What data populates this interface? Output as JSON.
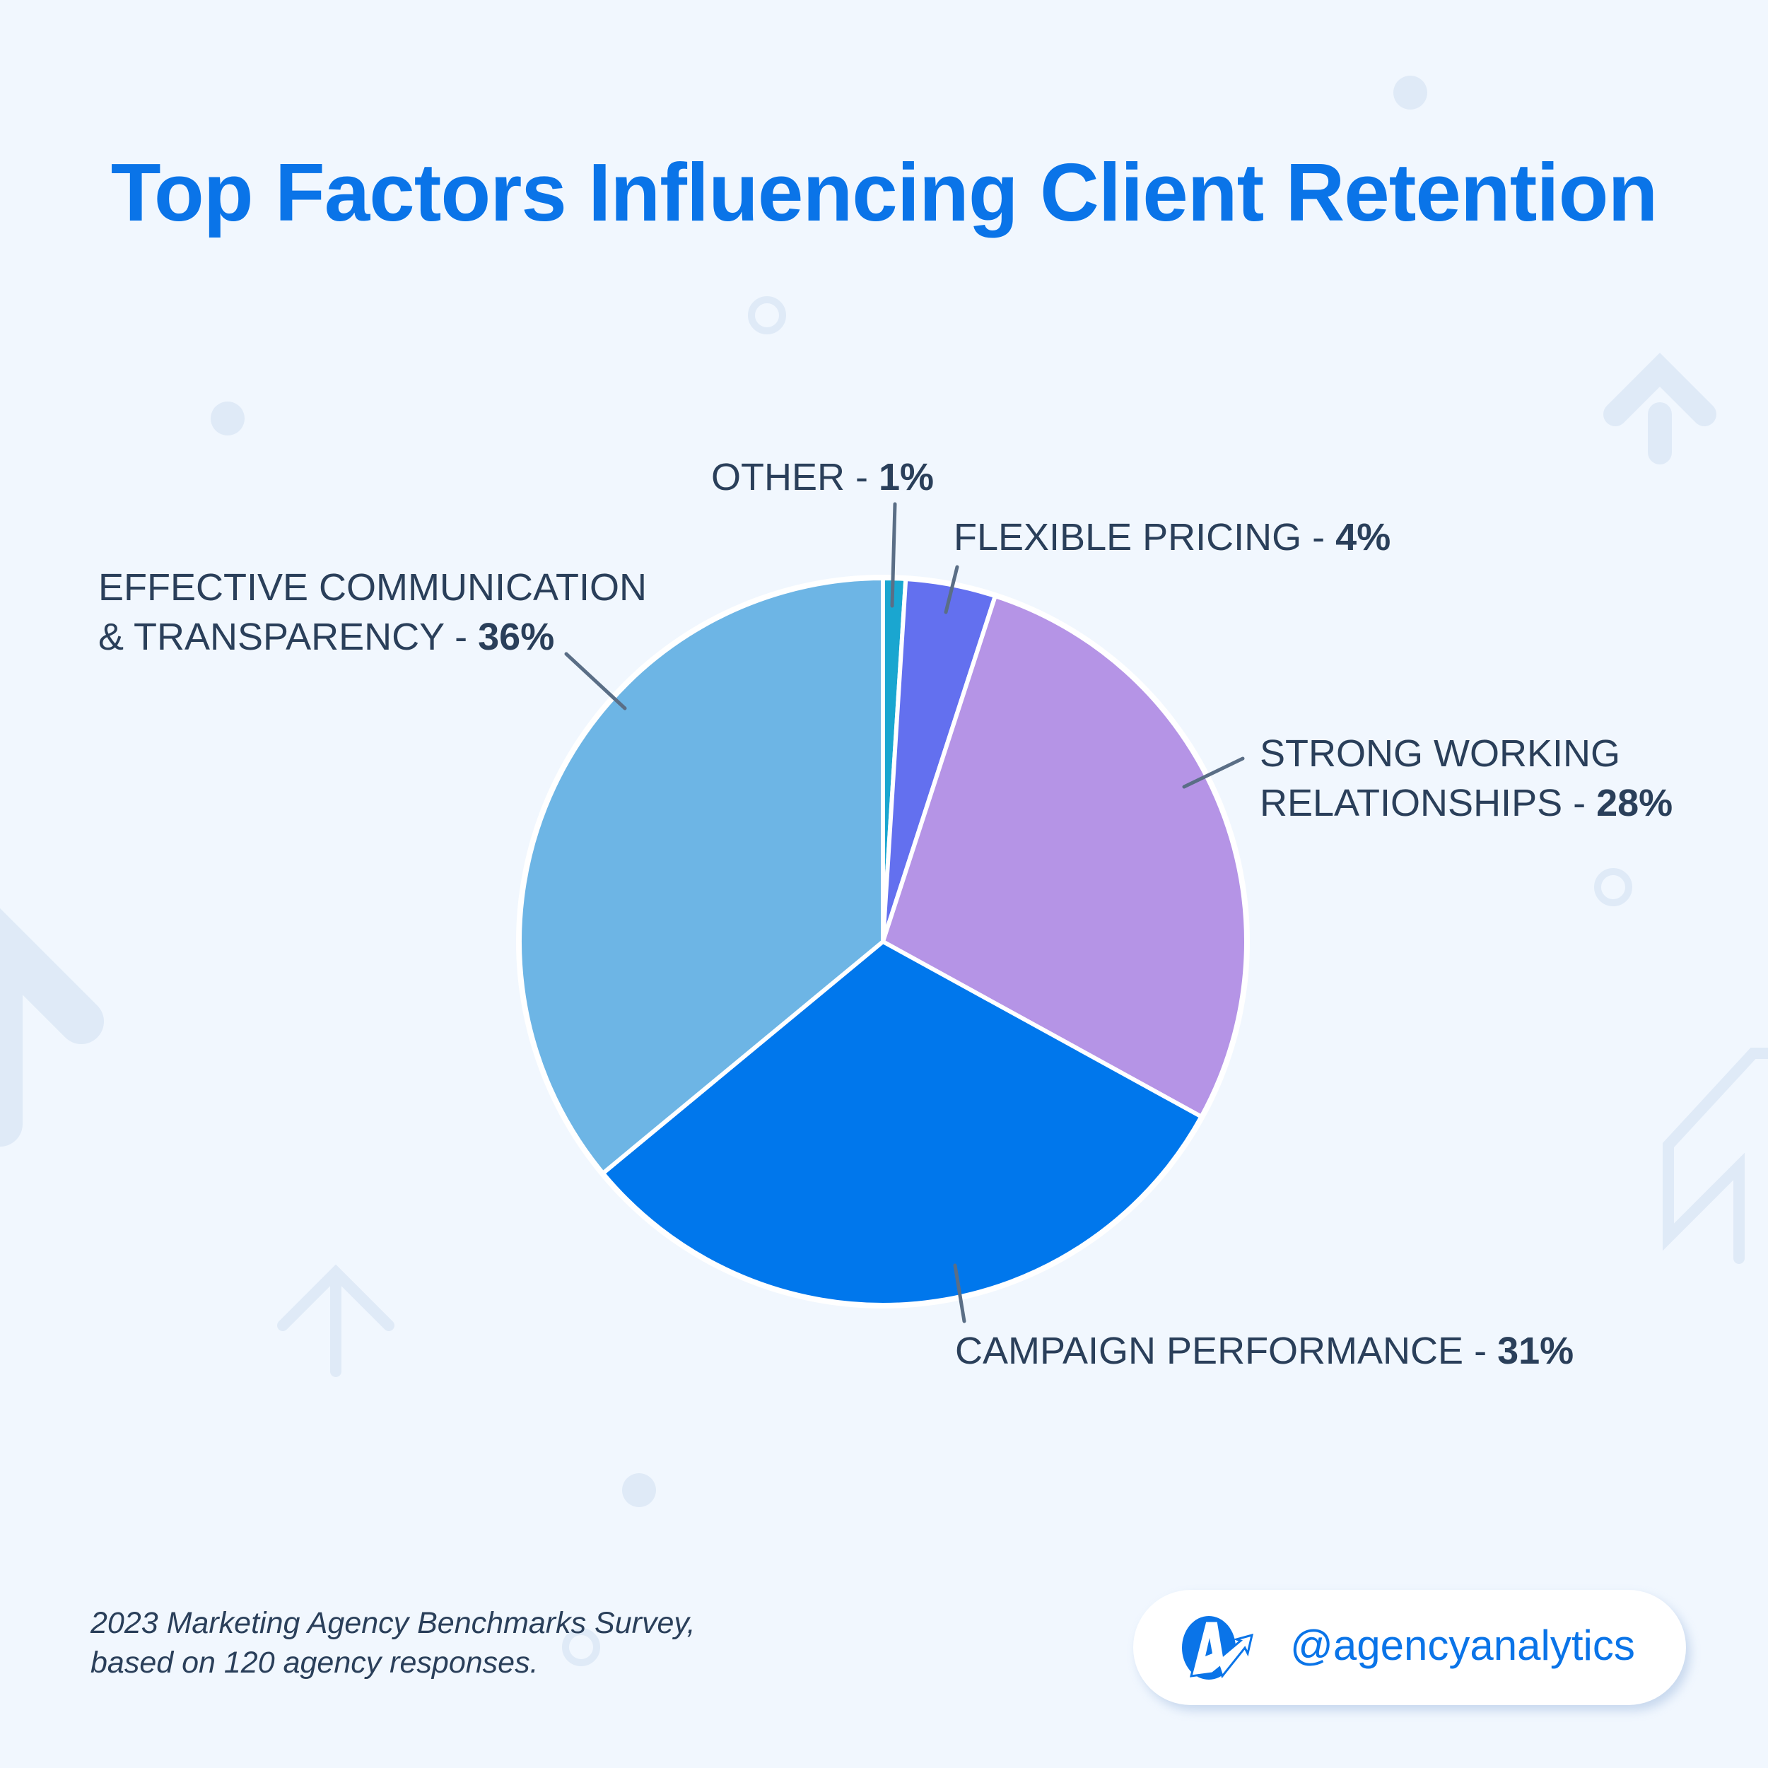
{
  "title": "Top Factors Influencing Client Retention",
  "chart_data": {
    "type": "pie",
    "title": "Top Factors Influencing Client Retention",
    "start": "top",
    "direction": "clockwise",
    "slices": [
      {
        "label": "OTHER",
        "value": 1,
        "value_label": "1%",
        "color": "#1aa6d0"
      },
      {
        "label": "FLEXIBLE PRICING",
        "value": 4,
        "value_label": "4%",
        "color": "#6370ef"
      },
      {
        "label": "STRONG WORKING RELATIONSHIPS",
        "line1": "STRONG WORKING",
        "line2": "RELATIONSHIPS",
        "value": 28,
        "value_label": "28%",
        "color": "#b594e6"
      },
      {
        "label": "CAMPAIGN PERFORMANCE",
        "value": 31,
        "value_label": "31%",
        "color": "#0077ec"
      },
      {
        "label": "EFFECTIVE COMMUNICATION & TRANSPARENCY",
        "line1": "EFFECTIVE COMMUNICATION",
        "line2": "& TRANSPARENCY",
        "value": 36,
        "value_label": "36%",
        "color": "#6db5e5"
      }
    ]
  },
  "footnote": {
    "line1": "2023 Marketing Agency Benchmarks Survey,",
    "line2": "based on 120 agency responses."
  },
  "brand": {
    "handle": "@agencyanalytics",
    "logo_text": "A",
    "color": "#0a74e8"
  }
}
